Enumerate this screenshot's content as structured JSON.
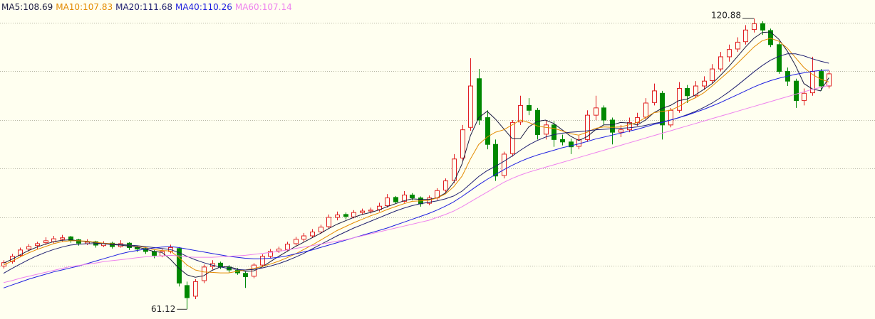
{
  "chart_data": {
    "type": "candlestick",
    "ylim": [
      59.12,
      124.67
    ],
    "yticks": [
      70,
      80,
      90,
      100,
      110,
      120
    ],
    "show_ytick_labels": false,
    "grid": true,
    "up_color": "#e02020",
    "down_color": "#008800",
    "max_label": 120.88,
    "min_label": 61.12,
    "candles": [
      [
        70.0,
        71.2,
        69.5,
        70.7
      ],
      [
        70.9,
        72.5,
        70.5,
        72.0
      ],
      [
        72.2,
        73.8,
        71.8,
        73.3
      ],
      [
        73.5,
        74.5,
        73.0,
        74.0
      ],
      [
        74.2,
        75.0,
        73.5,
        74.6
      ],
      [
        74.8,
        75.9,
        74.3,
        75.2
      ],
      [
        75.0,
        76.2,
        74.6,
        75.6
      ],
      [
        75.5,
        76.4,
        75.0,
        75.8
      ],
      [
        76.0,
        76.2,
        74.8,
        75.3
      ],
      [
        75.4,
        75.6,
        74.2,
        74.7
      ],
      [
        74.6,
        75.5,
        74.3,
        74.9
      ],
      [
        75.0,
        75.2,
        73.8,
        74.3
      ],
      [
        74.2,
        75.1,
        73.9,
        74.6
      ],
      [
        74.7,
        75.0,
        73.6,
        74.0
      ],
      [
        74.0,
        75.3,
        73.8,
        74.6
      ],
      [
        74.7,
        74.9,
        73.3,
        73.8
      ],
      [
        73.8,
        74.2,
        72.9,
        73.5
      ],
      [
        73.6,
        73.9,
        72.5,
        73.0
      ],
      [
        73.0,
        73.4,
        71.6,
        72.2
      ],
      [
        72.1,
        73.5,
        71.8,
        73.0
      ],
      [
        73.0,
        74.4,
        72.6,
        73.8
      ],
      [
        73.6,
        73.9,
        65.8,
        66.5
      ],
      [
        66.0,
        66.8,
        61.12,
        63.5
      ],
      [
        63.8,
        67.3,
        63.2,
        66.8
      ],
      [
        67.0,
        70.3,
        66.5,
        69.8
      ],
      [
        69.9,
        71.2,
        69.3,
        70.5
      ],
      [
        70.6,
        70.9,
        69.4,
        69.8
      ],
      [
        69.8,
        70.2,
        68.7,
        69.2
      ],
      [
        69.1,
        69.6,
        68.2,
        68.6
      ],
      [
        68.5,
        69.0,
        65.5,
        67.8
      ],
      [
        67.9,
        70.6,
        67.5,
        70.2
      ],
      [
        70.2,
        72.4,
        69.8,
        72.0
      ],
      [
        72.0,
        73.5,
        71.6,
        73.0
      ],
      [
        73.1,
        74.0,
        72.7,
        73.5
      ],
      [
        73.4,
        75.0,
        73.0,
        74.5
      ],
      [
        74.6,
        76.0,
        74.2,
        75.5
      ],
      [
        75.5,
        76.8,
        75.0,
        76.2
      ],
      [
        76.2,
        77.6,
        75.8,
        77.0
      ],
      [
        77.0,
        78.5,
        76.6,
        78.0
      ],
      [
        78.1,
        80.6,
        77.8,
        80.0
      ],
      [
        80.0,
        81.2,
        79.4,
        80.5
      ],
      [
        80.6,
        81.0,
        79.6,
        80.2
      ],
      [
        80.1,
        81.5,
        79.8,
        81.0
      ],
      [
        81.0,
        81.8,
        80.5,
        81.3
      ],
      [
        81.3,
        82.0,
        80.8,
        81.5
      ],
      [
        81.6,
        83.0,
        81.2,
        82.3
      ],
      [
        82.4,
        84.8,
        82.0,
        84.0
      ],
      [
        84.1,
        84.4,
        82.8,
        83.2
      ],
      [
        83.3,
        85.4,
        83.0,
        84.6
      ],
      [
        84.6,
        85.0,
        83.5,
        84.0
      ],
      [
        84.0,
        84.3,
        82.2,
        82.8
      ],
      [
        82.9,
        84.5,
        82.5,
        84.0
      ],
      [
        84.0,
        86.0,
        83.6,
        85.5
      ],
      [
        85.6,
        88.0,
        85.0,
        87.5
      ],
      [
        87.6,
        93.0,
        87.0,
        92.0
      ],
      [
        92.2,
        99.0,
        91.5,
        98.0
      ],
      [
        98.5,
        112.7,
        97.8,
        107.0
      ],
      [
        108.5,
        110.5,
        99.0,
        100.0
      ],
      [
        100.5,
        102.0,
        94.0,
        95.0
      ],
      [
        95.0,
        96.0,
        87.5,
        88.5
      ],
      [
        88.6,
        93.5,
        88.0,
        93.0
      ],
      [
        93.1,
        100.0,
        92.5,
        99.5
      ],
      [
        99.6,
        105.0,
        99.0,
        103.0
      ],
      [
        103.0,
        104.5,
        101.0,
        102.0
      ],
      [
        102.0,
        102.5,
        96.0,
        97.0
      ],
      [
        97.1,
        100.0,
        96.0,
        99.0
      ],
      [
        99.0,
        99.8,
        94.5,
        96.0
      ],
      [
        96.0,
        97.0,
        94.8,
        95.5
      ],
      [
        95.5,
        96.2,
        93.0,
        94.5
      ],
      [
        94.6,
        96.8,
        94.0,
        96.0
      ],
      [
        96.0,
        102.0,
        95.5,
        101.0
      ],
      [
        101.0,
        105.0,
        100.0,
        102.5
      ],
      [
        102.5,
        103.0,
        99.0,
        100.0
      ],
      [
        100.0,
        100.5,
        95.0,
        97.5
      ],
      [
        97.5,
        99.0,
        96.5,
        98.0
      ],
      [
        98.0,
        100.5,
        97.5,
        99.5
      ],
      [
        99.5,
        101.5,
        98.8,
        100.5
      ],
      [
        100.6,
        104.5,
        100.0,
        103.5
      ],
      [
        103.6,
        107.5,
        103.0,
        106.0
      ],
      [
        105.5,
        106.0,
        96.0,
        99.0
      ],
      [
        99.0,
        102.5,
        98.5,
        102.0
      ],
      [
        102.0,
        107.8,
        101.5,
        106.5
      ],
      [
        106.5,
        107.2,
        103.5,
        105.0
      ],
      [
        105.0,
        108.0,
        104.5,
        107.0
      ],
      [
        107.0,
        109.0,
        106.2,
        108.0
      ],
      [
        108.1,
        111.5,
        107.5,
        110.5
      ],
      [
        110.5,
        114.0,
        110.0,
        113.0
      ],
      [
        113.0,
        115.5,
        112.0,
        114.5
      ],
      [
        114.6,
        117.0,
        114.0,
        116.0
      ],
      [
        116.1,
        119.5,
        115.5,
        118.5
      ],
      [
        118.6,
        120.88,
        118.0,
        119.8
      ],
      [
        119.8,
        120.3,
        117.5,
        118.5
      ],
      [
        118.4,
        118.8,
        115.0,
        115.5
      ],
      [
        115.5,
        116.0,
        109.5,
        110.0
      ],
      [
        110.0,
        110.8,
        107.0,
        108.0
      ],
      [
        108.0,
        108.5,
        102.5,
        104.0
      ],
      [
        104.0,
        106.5,
        103.0,
        105.5
      ],
      [
        105.6,
        113.0,
        105.0,
        110.0
      ],
      [
        110.0,
        110.5,
        106.0,
        107.0
      ],
      [
        107.0,
        110.2,
        106.5,
        109.5
      ]
    ],
    "series": [
      {
        "name": "MA5:108.69",
        "color": "#1c1c40",
        "values": [
          70.6,
          71.4,
          72.3,
          73.2,
          73.9,
          74.5,
          75.0,
          75.3,
          75.4,
          75.2,
          75.0,
          74.8,
          74.6,
          74.4,
          74.3,
          74.1,
          73.9,
          73.5,
          73.0,
          72.8,
          71.4,
          69.6,
          68.2,
          67.7,
          68.0,
          69.1,
          69.8,
          69.9,
          69.4,
          68.9,
          69.0,
          69.8,
          70.9,
          72.0,
          73.0,
          74.0,
          74.9,
          75.8,
          76.7,
          77.7,
          78.6,
          79.3,
          80.0,
          80.6,
          81.0,
          81.5,
          82.2,
          82.8,
          83.4,
          83.8,
          83.7,
          83.7,
          84.0,
          85.0,
          87.2,
          91.0,
          96.8,
          100.5,
          101.8,
          100.2,
          98.2,
          96.2,
          96.2,
          98.6,
          99.7,
          100.0,
          99.3,
          98.0,
          96.7,
          95.8,
          96.6,
          98.0,
          99.0,
          99.0,
          99.5,
          99.4,
          99.0,
          100.0,
          101.5,
          102.4,
          103.0,
          104.0,
          104.3,
          105.2,
          106.3,
          107.5,
          109.2,
          111.0,
          113.0,
          115.0,
          116.8,
          118.0,
          118.1,
          116.6,
          114.2,
          111.2,
          107.5,
          106.4,
          106.0,
          108.69
        ]
      },
      {
        "name": "MA10:107.83",
        "color": "#e38b00",
        "values": [
          70.2,
          71.0,
          71.9,
          72.7,
          73.4,
          74.0,
          74.6,
          75.0,
          75.2,
          75.2,
          75.1,
          74.9,
          74.7,
          74.6,
          74.4,
          74.3,
          74.1,
          73.8,
          73.4,
          73.2,
          73.1,
          71.8,
          70.2,
          69.2,
          68.8,
          68.7,
          68.6,
          68.6,
          68.9,
          69.2,
          69.5,
          69.9,
          70.4,
          71.0,
          71.7,
          72.5,
          73.4,
          74.3,
          75.3,
          76.3,
          77.3,
          78.1,
          78.9,
          79.6,
          80.3,
          80.9,
          81.6,
          82.2,
          82.8,
          83.3,
          83.4,
          83.5,
          84.0,
          84.8,
          86.3,
          88.5,
          92.0,
          95.0,
          96.5,
          97.5,
          98.0,
          99.0,
          100.0,
          99.5,
          98.8,
          98.5,
          98.3,
          97.8,
          97.2,
          96.9,
          97.5,
          98.3,
          98.6,
          98.5,
          98.6,
          99.0,
          99.5,
          100.5,
          101.5,
          101.8,
          102.0,
          102.8,
          103.8,
          104.6,
          105.6,
          107.0,
          108.5,
          110.0,
          111.6,
          113.3,
          115.0,
          116.3,
          116.8,
          116.2,
          114.8,
          112.8,
          110.8,
          109.4,
          108.4,
          107.83
        ]
      },
      {
        "name": "MA20:111.68",
        "color": "#202070",
        "values": [
          68.5,
          69.5,
          70.4,
          71.3,
          72.1,
          72.8,
          73.4,
          73.9,
          74.3,
          74.5,
          74.6,
          74.6,
          74.6,
          74.5,
          74.4,
          74.3,
          74.2,
          74.0,
          73.8,
          73.6,
          73.4,
          72.8,
          72.0,
          71.3,
          70.7,
          70.2,
          69.8,
          69.5,
          69.3,
          69.2,
          69.3,
          69.6,
          70.0,
          70.5,
          71.1,
          71.8,
          72.6,
          73.5,
          74.4,
          75.3,
          76.2,
          77.0,
          77.8,
          78.5,
          79.2,
          79.9,
          80.6,
          81.3,
          81.9,
          82.4,
          82.8,
          83.1,
          83.4,
          83.8,
          84.4,
          85.4,
          86.9,
          88.4,
          89.6,
          90.5,
          91.5,
          92.6,
          93.8,
          94.9,
          95.8,
          96.5,
          97.0,
          97.3,
          97.5,
          97.6,
          97.8,
          98.0,
          98.1,
          98.2,
          98.3,
          98.4,
          98.6,
          98.9,
          99.3,
          99.6,
          100.0,
          100.5,
          101.1,
          101.8,
          102.6,
          103.5,
          104.6,
          105.8,
          107.1,
          108.5,
          109.9,
          111.2,
          112.3,
          113.1,
          113.6,
          113.6,
          113.2,
          112.6,
          112.1,
          111.68
        ]
      },
      {
        "name": "MA40:110.26",
        "color": "#1e1ee0",
        "values": [
          65.5,
          66.1,
          66.7,
          67.3,
          67.8,
          68.3,
          68.8,
          69.2,
          69.6,
          70.0,
          70.5,
          71.0,
          71.5,
          72.0,
          72.5,
          72.9,
          73.2,
          73.5,
          73.7,
          73.9,
          74.0,
          73.8,
          73.5,
          73.2,
          72.9,
          72.6,
          72.3,
          72.0,
          71.8,
          71.6,
          71.5,
          71.5,
          71.6,
          71.8,
          72.1,
          72.5,
          72.9,
          73.3,
          73.8,
          74.3,
          74.8,
          75.3,
          75.8,
          76.3,
          76.8,
          77.3,
          77.8,
          78.4,
          79.0,
          79.6,
          80.2,
          80.8,
          81.5,
          82.3,
          83.2,
          84.3,
          85.5,
          86.7,
          87.8,
          88.8,
          89.8,
          90.7,
          91.5,
          92.2,
          92.8,
          93.3,
          93.8,
          94.3,
          94.7,
          95.1,
          95.6,
          96.1,
          96.5,
          96.9,
          97.3,
          97.7,
          98.1,
          98.6,
          99.1,
          99.5,
          100.0,
          100.5,
          101.0,
          101.6,
          102.2,
          102.9,
          103.6,
          104.4,
          105.2,
          106.0,
          106.8,
          107.5,
          108.1,
          108.6,
          109.0,
          109.4,
          109.7,
          110.0,
          110.2,
          110.26
        ]
      },
      {
        "name": "MA60:107.14",
        "color": "#ee82ee",
        "values": [
          66.6,
          67.0,
          67.5,
          67.9,
          68.3,
          68.7,
          69.1,
          69.5,
          69.9,
          70.1,
          70.4,
          70.6,
          70.9,
          71.1,
          71.3,
          71.5,
          71.7,
          71.9,
          72.0,
          72.1,
          72.2,
          72.1,
          71.9,
          71.8,
          71.8,
          71.8,
          71.9,
          72.0,
          72.1,
          72.2,
          72.4,
          72.6,
          72.8,
          73.0,
          73.3,
          73.6,
          73.9,
          74.2,
          74.5,
          74.8,
          75.1,
          75.4,
          75.8,
          76.2,
          76.6,
          77.0,
          77.4,
          77.8,
          78.2,
          78.6,
          79.0,
          79.4,
          80.0,
          80.6,
          81.3,
          82.2,
          83.2,
          84.2,
          85.2,
          86.2,
          87.2,
          88.0,
          88.7,
          89.3,
          89.8,
          90.3,
          90.8,
          91.3,
          91.8,
          92.3,
          92.8,
          93.3,
          93.8,
          94.3,
          94.8,
          95.3,
          95.8,
          96.3,
          96.8,
          97.3,
          97.8,
          98.3,
          98.8,
          99.3,
          99.8,
          100.3,
          100.8,
          101.3,
          101.8,
          102.3,
          102.8,
          103.3,
          103.8,
          104.3,
          104.8,
          105.3,
          105.8,
          106.3,
          106.7,
          107.14
        ]
      }
    ]
  }
}
